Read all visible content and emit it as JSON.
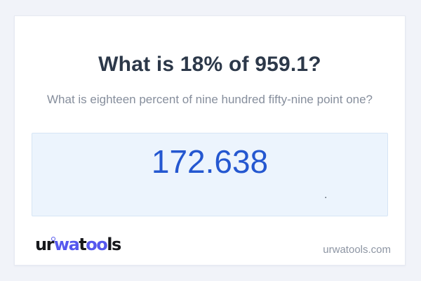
{
  "card": {
    "question": {
      "title": "What is 18% of 959.1?",
      "subtitle": "What is eighteen percent of nine hundred fifty-nine point one?"
    },
    "answer": {
      "value": "172.638",
      "dot": "."
    },
    "footer": {
      "logo": {
        "part_ur": "ur",
        "part_wa": "wa",
        "part_t": "t",
        "part_oo": "oo",
        "part_ls": "ls"
      },
      "website": "urwatools.com"
    }
  },
  "colors": {
    "page_background": "#f1f3f9",
    "card_background": "#ffffff",
    "card_border": "#e6e9f2",
    "title_text": "#2c3849",
    "subtitle_text": "#868e9c",
    "answer_box_background": "#ecf4fd",
    "answer_box_border": "#d6e5f5",
    "answer_text": "#2457d0",
    "logo_dark": "#17181c",
    "logo_accent": "#5558ee",
    "footer_url_text": "#8d95a3"
  }
}
